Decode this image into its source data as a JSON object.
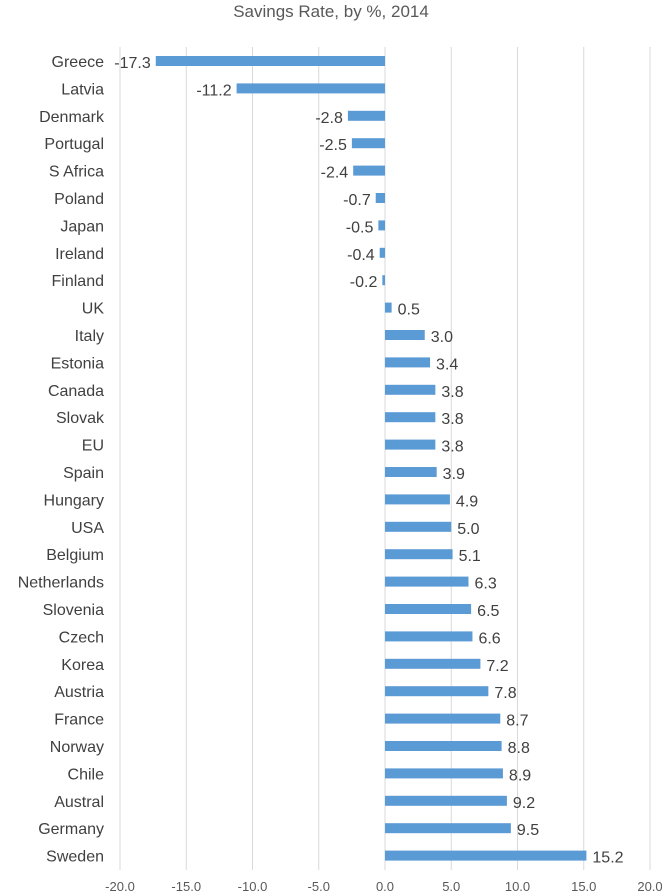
{
  "chart_data": {
    "type": "bar",
    "orientation": "horizontal",
    "title": "Savings Rate, by %, 2014",
    "xlabel": "",
    "ylabel": "",
    "xlim": [
      -20,
      20
    ],
    "x_ticks": [
      "-20.0",
      "-15.0",
      "-10.0",
      "-5.0",
      "0.0",
      "5.0",
      "10.0",
      "15.0",
      "20.0"
    ],
    "grid": "vertical",
    "bar_color": "#5B9BD5",
    "categories": [
      "Greece",
      "Latvia",
      "Denmark",
      "Portugal",
      "S Africa",
      "Poland",
      "Japan",
      "Ireland",
      "Finland",
      "UK",
      "Italy",
      "Estonia",
      "Canada",
      "Slovak",
      "EU",
      "Spain",
      "Hungary",
      "USA",
      "Belgium",
      "Netherlands",
      "Slovenia",
      "Czech",
      "Korea",
      "Austria",
      "France",
      "Norway",
      "Chile",
      "Austral",
      "Germany",
      "Sweden"
    ],
    "values": [
      -17.3,
      -11.2,
      -2.8,
      -2.5,
      -2.4,
      -0.7,
      -0.5,
      -0.4,
      -0.2,
      0.5,
      3.0,
      3.4,
      3.8,
      3.8,
      3.8,
      3.9,
      4.9,
      5.0,
      5.1,
      6.3,
      6.5,
      6.6,
      7.2,
      7.8,
      8.7,
      8.8,
      8.9,
      9.2,
      9.5,
      15.2
    ],
    "data_labels": [
      "-17.3",
      "-11.2",
      "-2.8",
      "-2.5",
      "-2.4",
      "-0.7",
      "-0.5",
      "-0.4",
      "-0.2",
      "0.5",
      "3.0",
      "3.4",
      "3.8",
      "3.8",
      "3.8",
      "3.9",
      "4.9",
      "5.0",
      "5.1",
      "6.3",
      "6.5",
      "6.6",
      "7.2",
      "7.8",
      "8.7",
      "8.8",
      "8.9",
      "9.2",
      "9.5",
      "15.2"
    ]
  }
}
